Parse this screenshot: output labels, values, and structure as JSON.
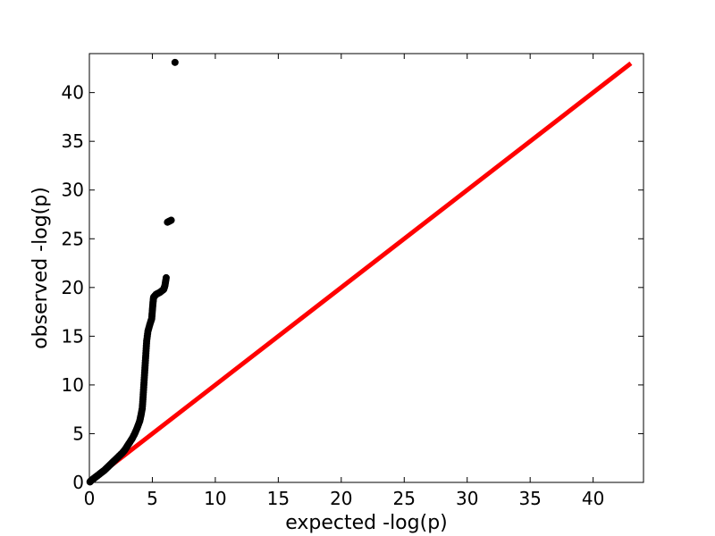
{
  "chart_data": {
    "type": "scatter",
    "title": "",
    "xlabel": "expected -log(p)",
    "ylabel": "observed -log(p)",
    "xlim": [
      0,
      44
    ],
    "ylim": [
      0,
      44
    ],
    "x_ticks": [
      "0",
      "5",
      "10",
      "15",
      "20",
      "25",
      "30",
      "35",
      "40"
    ],
    "y_ticks": [
      "0",
      "5",
      "10",
      "15",
      "20",
      "25",
      "30",
      "35",
      "40"
    ],
    "grid": false,
    "legend": "none",
    "colors": {
      "points": "#000000",
      "reference_line": "#ff0000"
    },
    "reference_line": {
      "x": [
        0,
        43
      ],
      "y": [
        0,
        43
      ]
    },
    "series": [
      {
        "points": [
          [
            0.05,
            0.05
          ],
          [
            0.15,
            0.2
          ],
          [
            0.3,
            0.35
          ],
          [
            0.45,
            0.5
          ],
          [
            0.6,
            0.65
          ],
          [
            0.8,
            0.85
          ],
          [
            1.0,
            1.05
          ],
          [
            1.2,
            1.25
          ],
          [
            1.4,
            1.5
          ],
          [
            1.6,
            1.75
          ],
          [
            1.8,
            2.0
          ],
          [
            2.0,
            2.25
          ],
          [
            2.2,
            2.5
          ],
          [
            2.4,
            2.75
          ],
          [
            2.6,
            3.0
          ],
          [
            2.8,
            3.3
          ],
          [
            3.0,
            3.7
          ],
          [
            3.2,
            4.1
          ],
          [
            3.4,
            4.5
          ],
          [
            3.6,
            5.0
          ],
          [
            3.8,
            5.6
          ],
          [
            4.0,
            6.3
          ],
          [
            4.1,
            6.9
          ],
          [
            4.2,
            7.6
          ],
          [
            4.25,
            8.5
          ],
          [
            4.3,
            9.5
          ],
          [
            4.35,
            10.5
          ],
          [
            4.4,
            11.5
          ],
          [
            4.45,
            12.5
          ],
          [
            4.5,
            13.5
          ],
          [
            4.55,
            14.5
          ],
          [
            4.65,
            15.5
          ],
          [
            4.8,
            16.2
          ],
          [
            4.95,
            16.8
          ],
          [
            5.0,
            17.6
          ],
          [
            5.05,
            18.4
          ],
          [
            5.1,
            19.0
          ],
          [
            5.3,
            19.3
          ],
          [
            5.6,
            19.5
          ],
          [
            5.9,
            19.8
          ],
          [
            6.0,
            20.2
          ],
          [
            6.1,
            21.0
          ],
          [
            6.2,
            26.7
          ],
          [
            6.5,
            26.9
          ],
          [
            6.8,
            43.1
          ]
        ]
      }
    ]
  }
}
